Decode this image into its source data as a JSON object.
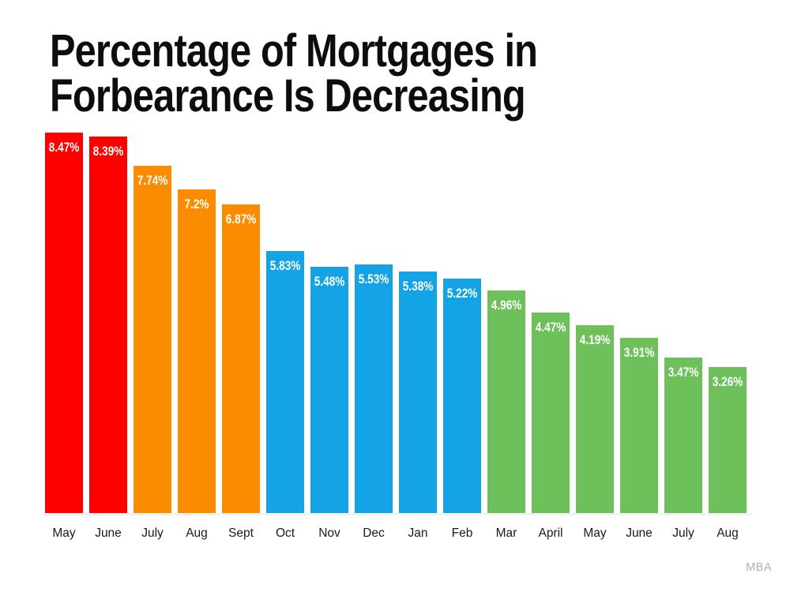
{
  "header": {
    "title_line1": "Percentage of Mortgages in",
    "title_line2": "Forbearance Is Decreasing"
  },
  "source_label": "MBA",
  "chart_data": {
    "type": "bar",
    "title": "Percentage of Mortgages in Forbearance Is Decreasing",
    "categories": [
      "May",
      "June",
      "July",
      "Aug",
      "Sept",
      "Oct",
      "Nov",
      "Dec",
      "Jan",
      "Feb",
      "Mar",
      "April",
      "May",
      "June",
      "July",
      "Aug"
    ],
    "values": [
      8.47,
      8.39,
      7.74,
      7.2,
      6.87,
      5.83,
      5.48,
      5.53,
      5.38,
      5.22,
      4.96,
      4.47,
      4.19,
      3.91,
      3.47,
      3.26
    ],
    "value_labels": [
      "8.47%",
      "8.39%",
      "7.74%",
      "7.2%",
      "6.87%",
      "5.83%",
      "5.48%",
      "5.53%",
      "5.38%",
      "5.22%",
      "4.96%",
      "4.47%",
      "4.19%",
      "3.91%",
      "3.47%",
      "3.26%"
    ],
    "bar_colors": [
      "#fe0000",
      "#fe0000",
      "#fb8c00",
      "#fb8c00",
      "#fb8c00",
      "#14a3e4",
      "#14a3e4",
      "#14a3e4",
      "#14a3e4",
      "#14a3e4",
      "#6ec05a",
      "#6ec05a",
      "#6ec05a",
      "#6ec05a",
      "#6ec05a",
      "#6ec05a"
    ],
    "xlabel": "",
    "ylabel": "",
    "ylim": [
      0,
      8.47
    ],
    "grid": false,
    "legend": "none",
    "value_label_color": "#ffffff",
    "axis_line_color": "#f2f2f2",
    "source": "MBA"
  }
}
